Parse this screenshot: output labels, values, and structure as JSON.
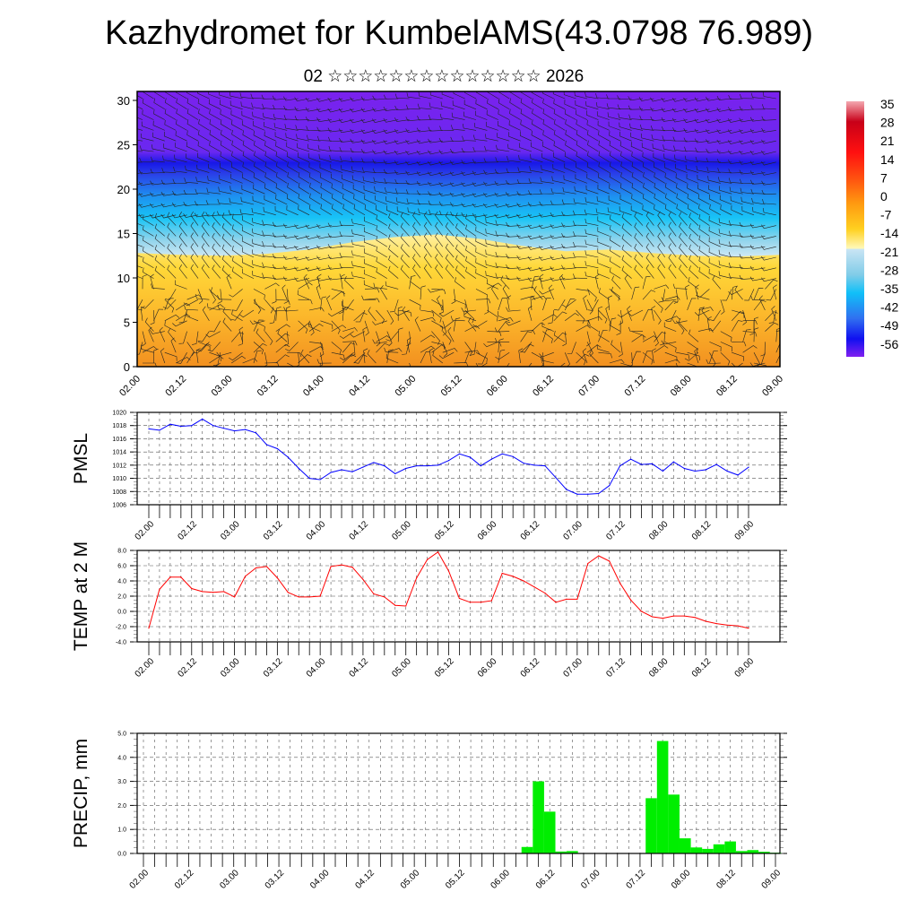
{
  "header": {
    "title": "Kazhydromet for KumbelAMS(43.0798 76.989)",
    "subtitle": "02 ☆☆☆☆☆☆☆☆☆☆☆☆☆☆ 2026"
  },
  "x_tick_labels": [
    "02.00",
    "02.12",
    "03.00",
    "03.12",
    "04.00",
    "04.12",
    "05.00",
    "05.12",
    "06.00",
    "06.12",
    "07.00",
    "07.12",
    "08.00",
    "08.12",
    "09.00"
  ],
  "colorbar": {
    "labels": [
      "35",
      "28",
      "21",
      "14",
      "7",
      "0",
      "-7",
      "-14",
      "-21",
      "-28",
      "-35",
      "-42",
      "-49",
      "-56"
    ],
    "colors": [
      "#f4a0a8",
      "#c80018",
      "#ff1010",
      "#ff5010",
      "#ff9a10",
      "#ffc820",
      "#fff8b0",
      "#c8e4f4",
      "#80cce8",
      "#10c0f8",
      "#3080f0",
      "#3050e0",
      "#1010f0",
      "#8020f0"
    ]
  },
  "chart_data": [
    {
      "type": "heatmap",
      "name": "vertical-profile",
      "ylabel": "",
      "yticks": [
        "0",
        "5",
        "10",
        "15",
        "20",
        "25",
        "30"
      ],
      "ylim": [
        0,
        31
      ],
      "description_fill": "temperature shading with wind barbs",
      "colorbar_range": [
        -56,
        35
      ]
    },
    {
      "type": "line",
      "name": "pmsl",
      "ylabel": "PMSL",
      "ylim": [
        1006,
        1020
      ],
      "yticks": [
        "1006",
        "1008",
        "1010",
        "1012",
        "1014",
        "1016",
        "1018",
        "1020"
      ],
      "step_hours": 3,
      "color": "#0000ff",
      "values": [
        1017.5,
        1017.3,
        1018.2,
        1017.9,
        1018.0,
        1019.0,
        1018.0,
        1017.6,
        1017.2,
        1017.4,
        1016.9,
        1015.1,
        1014.5,
        1013.2,
        1011.5,
        1010.0,
        1009.8,
        1010.9,
        1011.3,
        1011.0,
        1011.7,
        1012.4,
        1011.9,
        1010.7,
        1011.5,
        1011.9,
        1011.9,
        1012.0,
        1012.7,
        1013.7,
        1013.2,
        1011.9,
        1012.9,
        1013.7,
        1013.3,
        1012.3,
        1012.0,
        1011.9,
        1010.1,
        1008.3,
        1007.6,
        1007.6,
        1007.7,
        1008.9,
        1011.9,
        1012.9,
        1012.1,
        1012.2,
        1011.1,
        1012.5,
        1011.5,
        1011.1,
        1011.3,
        1012.1,
        1011.1,
        1010.5,
        1011.7
      ]
    },
    {
      "type": "line",
      "name": "temp",
      "ylabel": "TEMP at 2 M",
      "ylim": [
        -4,
        8
      ],
      "yticks": [
        "-4.0",
        "-2.0",
        "0.0",
        "2.0",
        "4.0",
        "6.0",
        "8.0"
      ],
      "step_hours": 3,
      "color": "#ff0000",
      "values": [
        -2.2,
        2.9,
        4.5,
        4.5,
        3.0,
        2.6,
        2.5,
        2.6,
        1.9,
        4.6,
        5.7,
        5.9,
        4.4,
        2.5,
        1.9,
        1.9,
        2.0,
        5.9,
        6.1,
        5.8,
        4.2,
        2.3,
        1.9,
        0.8,
        0.7,
        4.4,
        6.8,
        7.8,
        5.3,
        1.7,
        1.2,
        1.2,
        1.4,
        5.0,
        4.6,
        4.0,
        3.2,
        2.4,
        1.2,
        1.6,
        1.6,
        6.3,
        7.3,
        6.6,
        3.7,
        1.5,
        0.0,
        -0.7,
        -0.9,
        -0.6,
        -0.6,
        -0.8,
        -1.3,
        -1.6,
        -1.8,
        -1.9,
        -2.2
      ]
    },
    {
      "type": "bar",
      "name": "precip",
      "ylabel": "PRECIP, mm",
      "ylim": [
        0,
        5
      ],
      "yticks": [
        "0.0",
        "1.0",
        "2.0",
        "3.0",
        "4.0",
        "5.0"
      ],
      "step_hours": 3,
      "color": "#00ee00",
      "values": [
        0,
        0,
        0,
        0,
        0,
        0,
        0,
        0,
        0,
        0,
        0,
        0,
        0,
        0,
        0,
        0,
        0,
        0,
        0,
        0,
        0,
        0,
        0,
        0,
        0,
        0,
        0,
        0,
        0,
        0,
        0,
        0,
        0,
        0,
        0.27,
        3.0,
        1.74,
        0.08,
        0.1,
        0,
        0,
        0,
        0,
        0,
        0,
        2.3,
        4.68,
        2.45,
        0.63,
        0.25,
        0.19,
        0.38,
        0.5,
        0.1,
        0.14,
        0.07,
        0.03
      ]
    }
  ]
}
